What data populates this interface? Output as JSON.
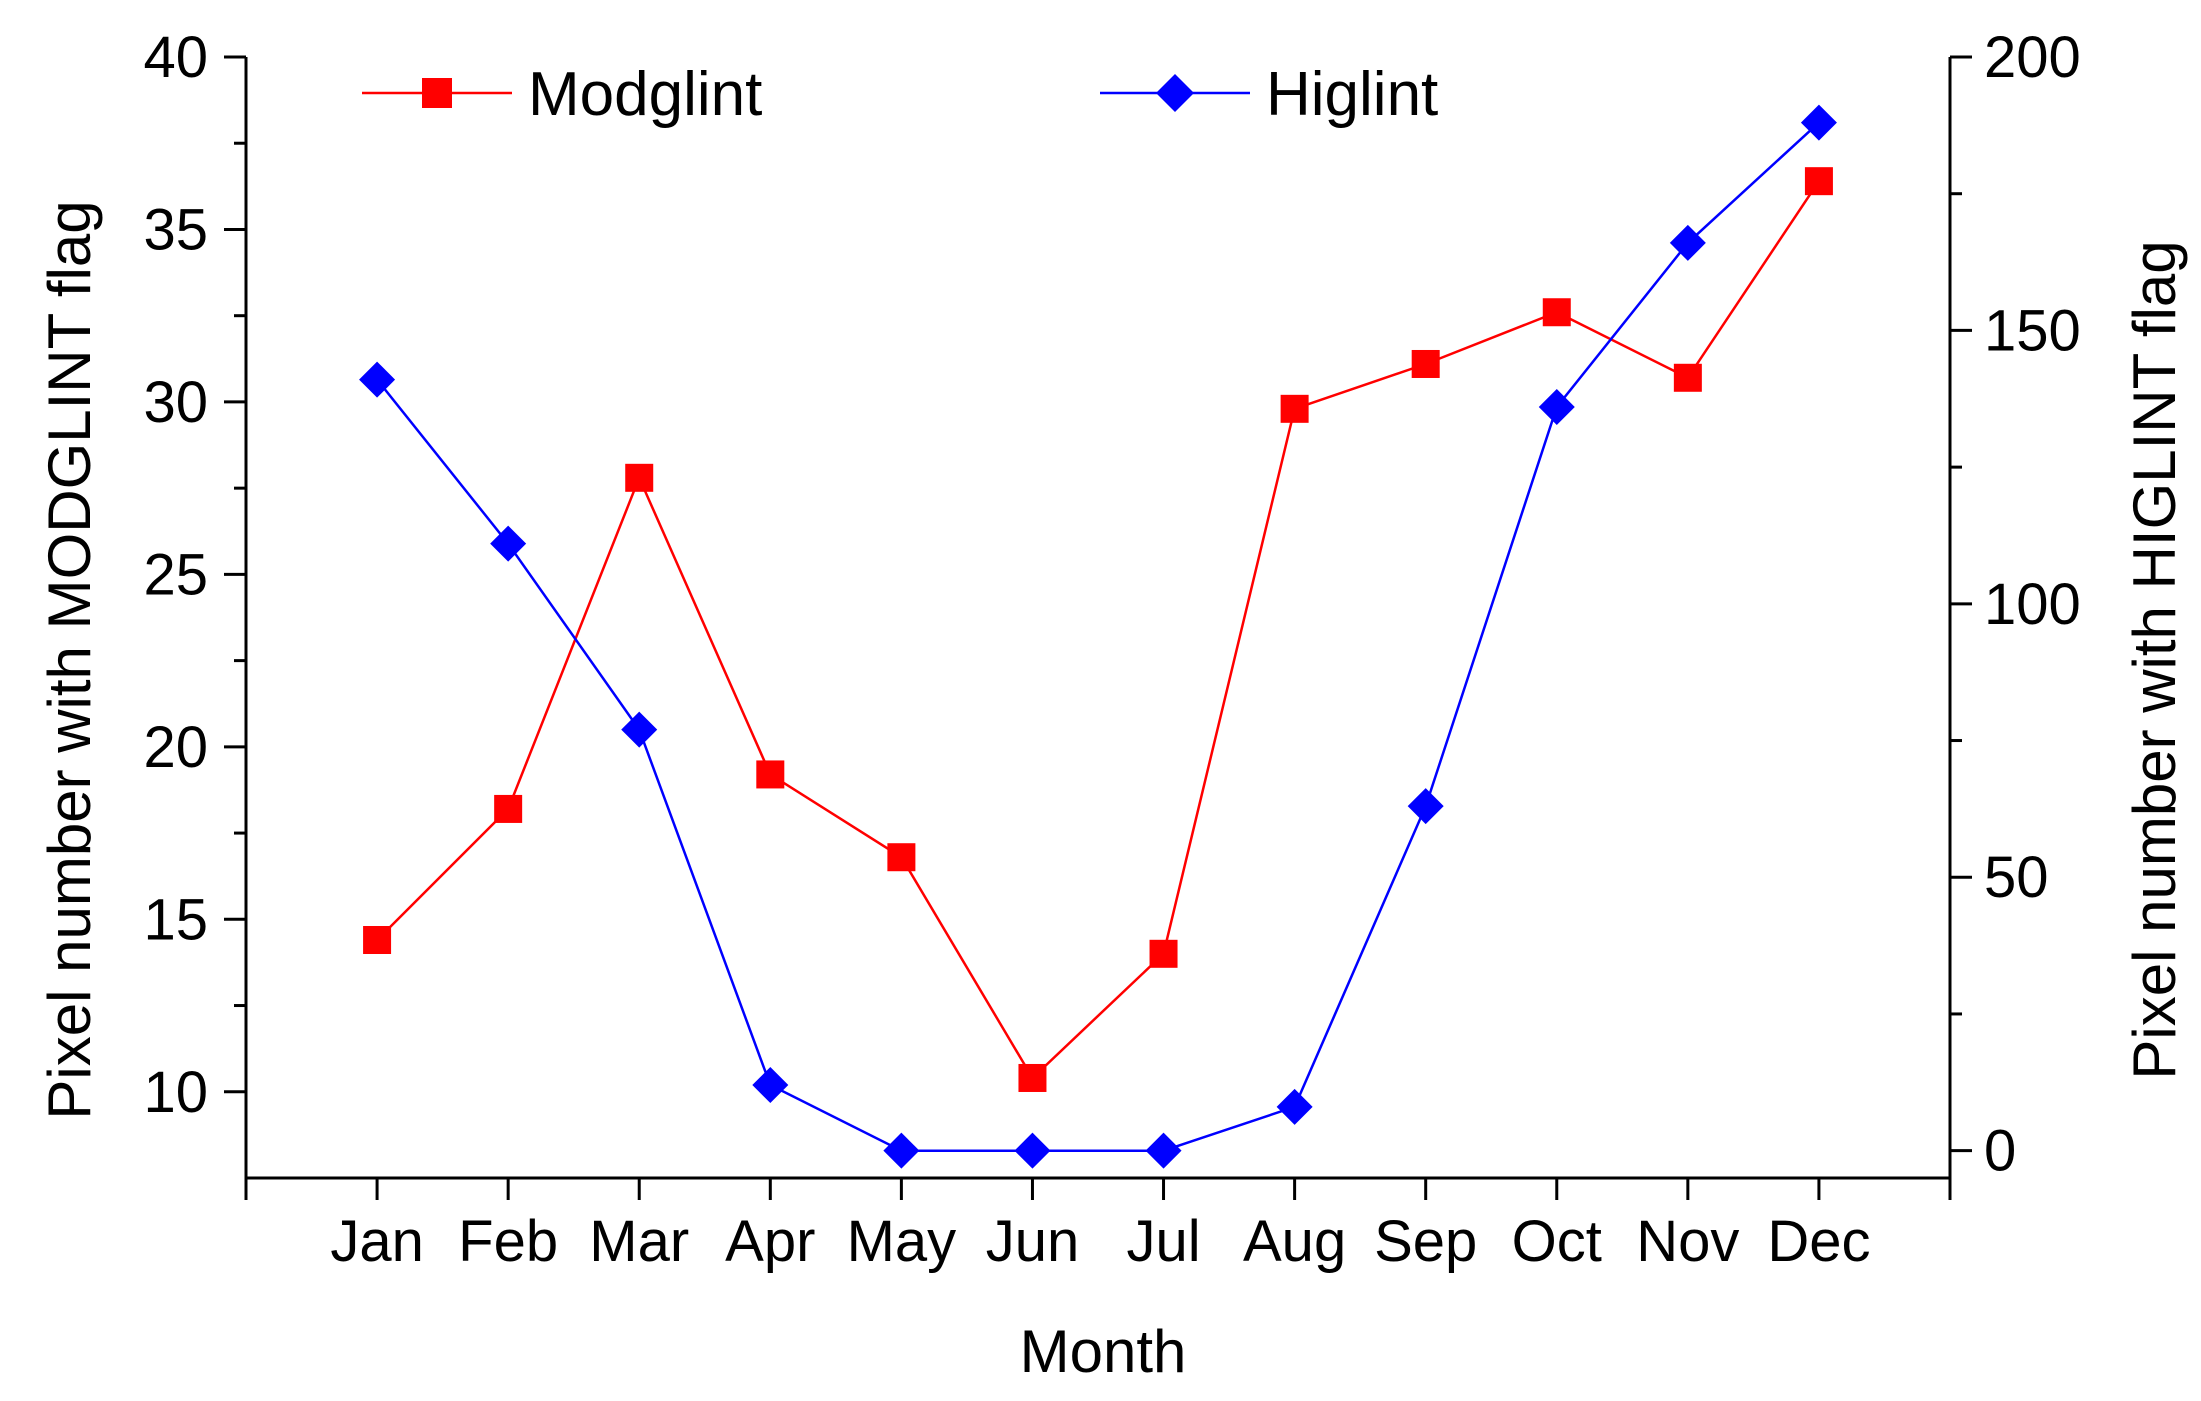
{
  "chart_data": {
    "type": "line",
    "title": "",
    "xlabel": "Month",
    "ylabel": "Pixel number with MODGLINT flag",
    "y2label": "Pixel number with HIGLINT flag",
    "categories": [
      "Jan",
      "Feb",
      "Mar",
      "Apr",
      "May",
      "Jun",
      "Jul",
      "Aug",
      "Sep",
      "Oct",
      "Nov",
      "Dec"
    ],
    "ylim": [
      7.5,
      40
    ],
    "y_ticks": [
      10,
      15,
      20,
      25,
      30,
      35,
      40
    ],
    "y2lim": [
      -5,
      200
    ],
    "y2_ticks": [
      0,
      50,
      100,
      150,
      200
    ],
    "legend_position": "top",
    "series": [
      {
        "name": "Modglint",
        "axis": "left",
        "color": "#ff0000",
        "marker": "square",
        "values": [
          14.4,
          18.2,
          27.8,
          19.2,
          16.8,
          10.4,
          14.0,
          29.8,
          31.1,
          32.6,
          30.7,
          36.4
        ]
      },
      {
        "name": "Higlint",
        "axis": "right",
        "color": "#0000ff",
        "marker": "diamond",
        "values": [
          141,
          111,
          77,
          12,
          0,
          0,
          0,
          8,
          63,
          136,
          166,
          188
        ]
      }
    ]
  }
}
